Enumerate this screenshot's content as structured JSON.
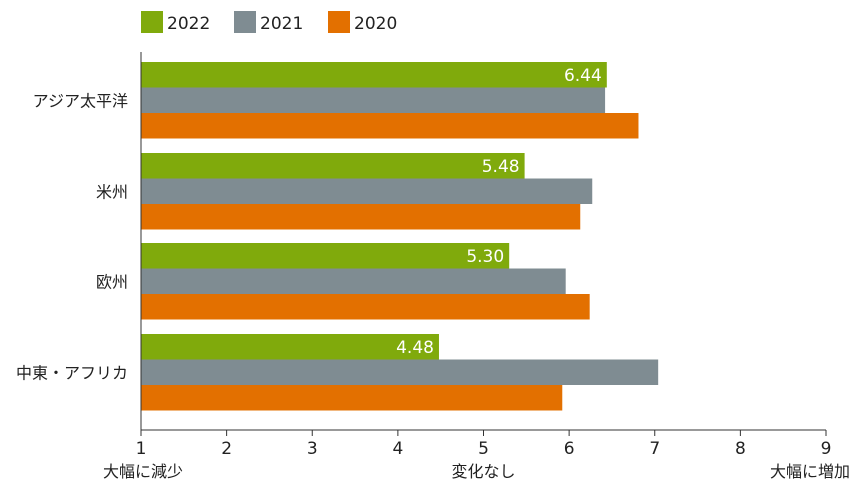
{
  "chart_data": {
    "type": "bar",
    "orientation": "horizontal",
    "categories": [
      "アジア太平洋",
      "米州",
      "欧州",
      "中東・アフリカ"
    ],
    "series": [
      {
        "name": "2022",
        "color": "#80AA0C",
        "values": [
          6.44,
          5.48,
          5.3,
          4.48
        ]
      },
      {
        "name": "2021",
        "color": "#7F8C92",
        "values": [
          6.42,
          6.27,
          5.96,
          7.04
        ]
      },
      {
        "name": "2020",
        "color": "#E37000",
        "values": [
          6.81,
          6.13,
          6.24,
          5.92
        ]
      }
    ],
    "data_labels": [
      "6.44",
      "5.48",
      "5.30",
      "4.48"
    ],
    "xlim": [
      1,
      9
    ],
    "ticks": [
      "1",
      "2",
      "3",
      "4",
      "5",
      "6",
      "7",
      "8",
      "9"
    ],
    "bottom_labels": {
      "left": "大幅に減少",
      "center": "変化なし",
      "right": "大幅に増加"
    },
    "legend_position": "top-left",
    "grid": false
  }
}
